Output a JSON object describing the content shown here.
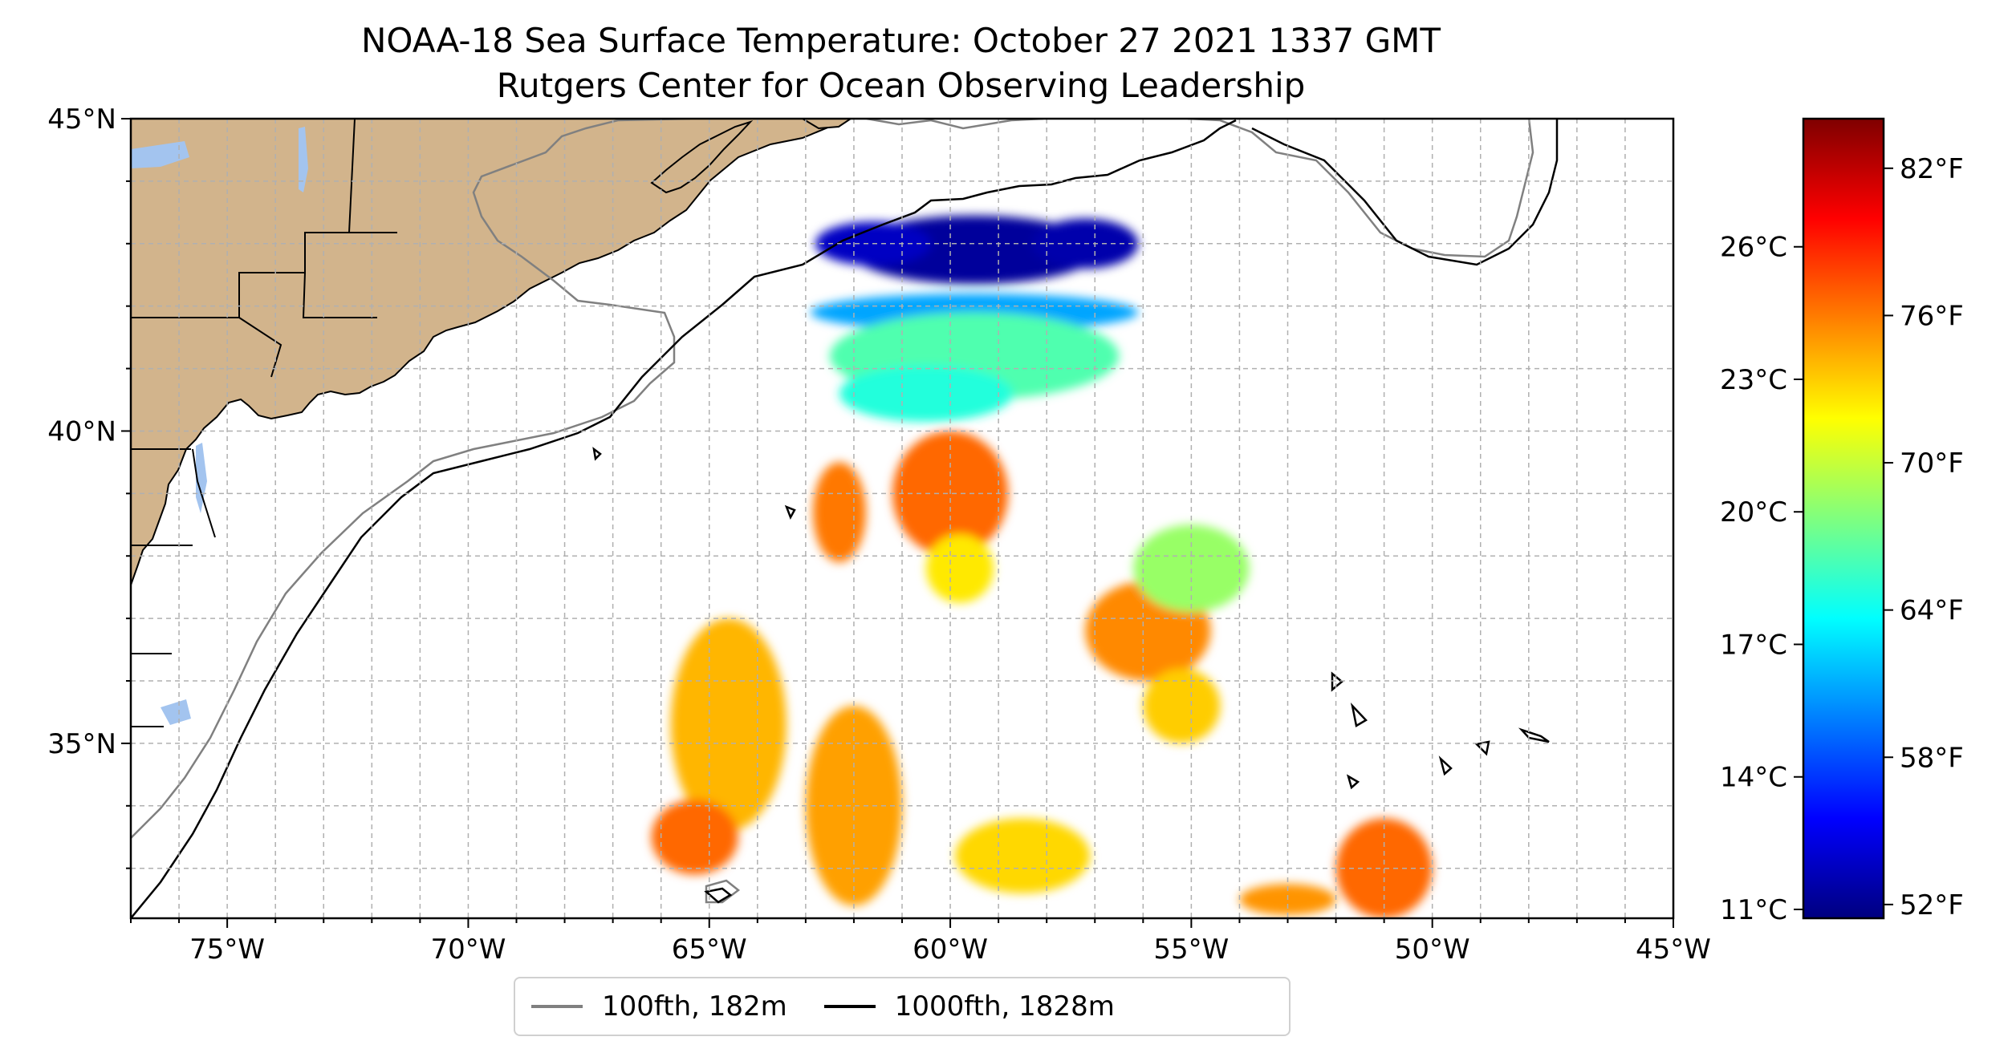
{
  "title": {
    "line1": "NOAA-18 Sea Surface Temperature: October 27 2021 1337 GMT",
    "line2": "Rutgers Center for Ocean Observing Leadership"
  },
  "map": {
    "extent": {
      "lon": [
        -77,
        -45
      ],
      "lat": [
        32.2,
        45
      ]
    },
    "land_color": "#d2b48c",
    "lake_color": "#a3c4ef",
    "border_color": "#000000",
    "grid_style": "dashed",
    "x_ticks": [
      {
        "value": -75,
        "label": "75°W"
      },
      {
        "value": -70,
        "label": "70°W"
      },
      {
        "value": -65,
        "label": "65°W"
      },
      {
        "value": -60,
        "label": "60°W"
      },
      {
        "value": -55,
        "label": "55°W"
      },
      {
        "value": -50,
        "label": "50°W"
      },
      {
        "value": -45,
        "label": "45°W"
      }
    ],
    "y_ticks": [
      {
        "value": 35,
        "label": "35°N"
      },
      {
        "value": 40,
        "label": "40°N"
      },
      {
        "value": 45,
        "label": "45°N"
      }
    ]
  },
  "colorbar": {
    "colormap": "jet",
    "colors": [
      "#00007f",
      "#0000ff",
      "#007fff",
      "#00ffff",
      "#7fff7f",
      "#ffff00",
      "#ff7f00",
      "#ff0000",
      "#7f0000"
    ],
    "range_c": [
      10.8,
      28.9
    ],
    "celsius_ticks": [
      {
        "value": 11,
        "label": "11°C"
      },
      {
        "value": 14,
        "label": "14°C"
      },
      {
        "value": 17,
        "label": "17°C"
      },
      {
        "value": 20,
        "label": "20°C"
      },
      {
        "value": 23,
        "label": "23°C"
      },
      {
        "value": 26,
        "label": "26°C"
      }
    ],
    "fahrenheit_ticks": [
      {
        "value": 52,
        "label": "52°F"
      },
      {
        "value": 58,
        "label": "58°F"
      },
      {
        "value": 64,
        "label": "64°F"
      },
      {
        "value": 70,
        "label": "70°F"
      },
      {
        "value": 76,
        "label": "76°F"
      },
      {
        "value": 82,
        "label": "82°F"
      }
    ]
  },
  "legend": {
    "entries": [
      {
        "label": "100fth, 182m",
        "color": "#808080"
      },
      {
        "label": "1000fth, 1828m",
        "color": "#000000"
      }
    ]
  },
  "sst_patches": [
    {
      "lon": -59.5,
      "lat": 42.9,
      "rx": 2.6,
      "ry": 0.55,
      "temp_c": 11.3
    },
    {
      "lon": -61.6,
      "lat": 43.0,
      "rx": 1.2,
      "ry": 0.35,
      "temp_c": 12.0
    },
    {
      "lon": -57.2,
      "lat": 43.0,
      "rx": 1.1,
      "ry": 0.4,
      "temp_c": 11.6
    },
    {
      "lon": -59.5,
      "lat": 41.9,
      "rx": 3.4,
      "ry": 0.3,
      "temp_c": 16.0
    },
    {
      "lon": -59.5,
      "lat": 41.2,
      "rx": 3.0,
      "ry": 0.7,
      "temp_c": 19.0
    },
    {
      "lon": -60.5,
      "lat": 40.6,
      "rx": 1.8,
      "ry": 0.45,
      "temp_c": 18.2
    },
    {
      "lon": -60.0,
      "lat": 39.0,
      "rx": 1.2,
      "ry": 1.0,
      "temp_c": 24.8
    },
    {
      "lon": -59.8,
      "lat": 37.8,
      "rx": 0.7,
      "ry": 0.55,
      "temp_c": 22.5
    },
    {
      "lon": -62.3,
      "lat": 38.7,
      "rx": 0.55,
      "ry": 0.8,
      "temp_c": 24.5
    },
    {
      "lon": -64.6,
      "lat": 35.3,
      "rx": 1.2,
      "ry": 1.7,
      "temp_c": 23.4
    },
    {
      "lon": -65.3,
      "lat": 33.5,
      "rx": 0.9,
      "ry": 0.6,
      "temp_c": 24.8
    },
    {
      "lon": -62.0,
      "lat": 34.0,
      "rx": 1.0,
      "ry": 1.6,
      "temp_c": 23.8
    },
    {
      "lon": -55.9,
      "lat": 36.8,
      "rx": 1.3,
      "ry": 0.8,
      "temp_c": 24.2
    },
    {
      "lon": -55.0,
      "lat": 37.8,
      "rx": 1.2,
      "ry": 0.7,
      "temp_c": 20.3
    },
    {
      "lon": -55.2,
      "lat": 35.6,
      "rx": 0.8,
      "ry": 0.6,
      "temp_c": 23.0
    },
    {
      "lon": -51.0,
      "lat": 33.0,
      "rx": 1.0,
      "ry": 0.8,
      "temp_c": 24.8
    },
    {
      "lon": -58.5,
      "lat": 33.2,
      "rx": 1.4,
      "ry": 0.6,
      "temp_c": 22.8
    },
    {
      "lon": -53.0,
      "lat": 32.5,
      "rx": 1.0,
      "ry": 0.25,
      "temp_c": 24.0
    }
  ]
}
